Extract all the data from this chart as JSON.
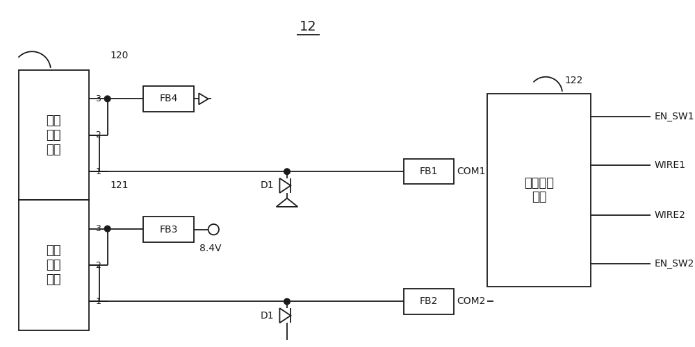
{
  "title": "12",
  "bg_color": "#ffffff",
  "line_color": "#1a1a1a",
  "text_color": "#1a1a1a",
  "components": {
    "box1_label": "第一\n通讯\n接口",
    "box2_label": "第一\n通讯\n接口",
    "ctrl_label": "控制开关\n单元",
    "fb1": "FB1",
    "fb2": "FB2",
    "fb3": "FB3",
    "fb4": "FB4",
    "com1": "COM1",
    "com2": "COM2",
    "d1": "D1",
    "voltage": "8.4V",
    "label_120": "120",
    "label_121": "121",
    "label_122": "122",
    "en_sw1": "EN_SW1",
    "wire1": "WIRE1",
    "wire2": "WIRE2",
    "en_sw2": "EN_SW2",
    "pin3": "3",
    "pin2": "2",
    "pin1": "1"
  }
}
